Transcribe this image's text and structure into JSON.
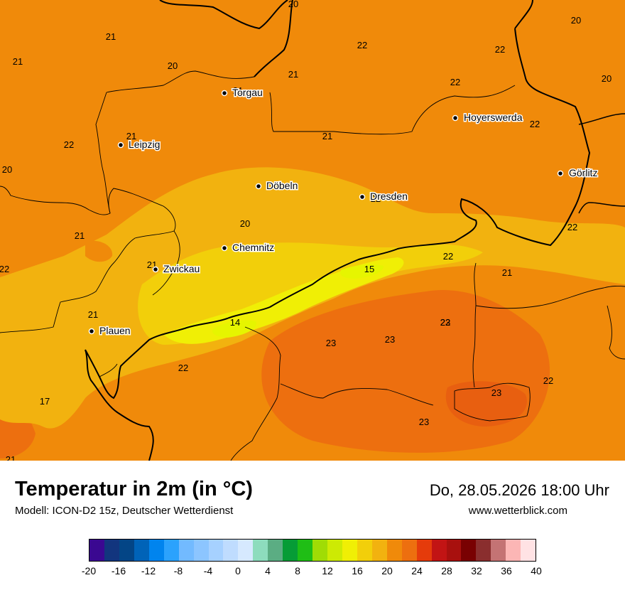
{
  "title": "Temperatur in 2m (in °C)",
  "subtitle": "Modell: ICON-D2 15z, Deutscher Wetterdienst",
  "datetime": "Do, 28.05.2026 18:00 Uhr",
  "website": "www.wetterblick.com",
  "colors": {
    "base": "#f08a0a",
    "warm_23": "#ed6f0f",
    "t20": "#f2b20f",
    "t18": "#f2cf0a",
    "t16": "#f0ef05",
    "t14": "#e6f500"
  },
  "cities": [
    {
      "name": "Torgau"
    },
    {
      "name": "Leipzig"
    },
    {
      "name": "Hoyerswerda"
    },
    {
      "name": "Görlitz"
    },
    {
      "name": "Döbeln"
    },
    {
      "name": "Dresden"
    },
    {
      "name": "Chemnitz"
    },
    {
      "name": "Zwickau"
    },
    {
      "name": "Plauen"
    }
  ],
  "value_labels": [
    "20",
    "21",
    "22",
    "20",
    "21",
    "20",
    "21",
    "22",
    "21",
    "22",
    "21",
    "20",
    "22",
    "21",
    "22",
    "22",
    "20",
    "22",
    "22",
    "20",
    "22",
    "21",
    "21",
    "21",
    "15",
    "22",
    "21",
    "23",
    "14",
    "23",
    "23",
    "22",
    "23",
    "22",
    "17",
    "23",
    "21"
  ],
  "legend": {
    "colors": [
      "#3a0891",
      "#12357e",
      "#034586",
      "#0063b8",
      "#0084ee",
      "#2ba2fd",
      "#72baff",
      "#8cc5ff",
      "#a6d1ff",
      "#bfdcfe",
      "#d6e9fe",
      "#8ddcbd",
      "#5bad83",
      "#069c36",
      "#1fbe15",
      "#a0dc05",
      "#cdea04",
      "#f0ef05",
      "#f2cf0a",
      "#f2b20f",
      "#f08a0a",
      "#ed6f0f",
      "#e53b0b",
      "#c21414",
      "#a8100e",
      "#790102",
      "#8a2e2e",
      "#c47374",
      "#fcb6b5",
      "#ffe2e4"
    ],
    "ticks": [
      "-20",
      "-16",
      "-12",
      "-8",
      "-4",
      "0",
      "4",
      "8",
      "12",
      "16",
      "20",
      "24",
      "28",
      "32",
      "36",
      "40"
    ]
  }
}
